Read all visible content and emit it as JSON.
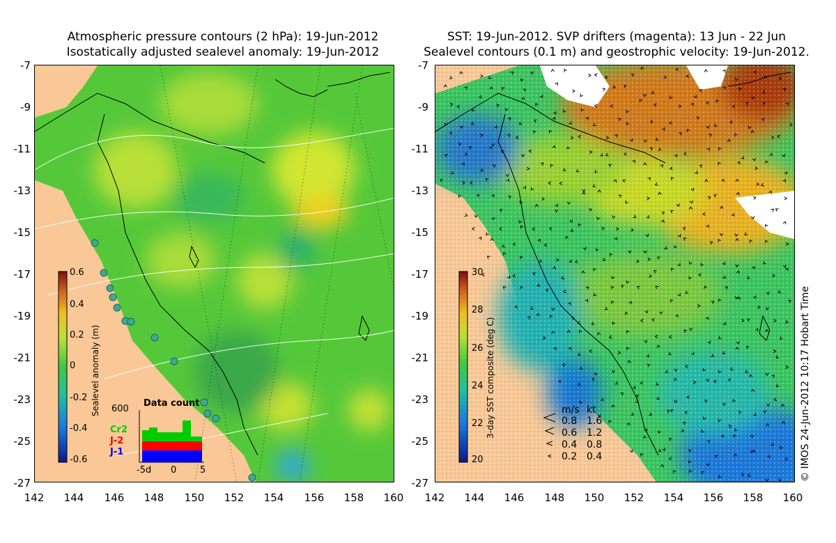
{
  "left_panel": {
    "title_line1": "Atmospheric pressure contours (2 hPa): 19-Jun-2012",
    "title_line2": "Isostatically adjusted sealevel anomaly: 19-Jun-2012",
    "y_ticks": [
      "-7",
      "-9",
      "-11",
      "-13",
      "-15",
      "-17",
      "-19",
      "-21",
      "-23",
      "-25",
      "-27"
    ],
    "x_ticks": [
      "142",
      "144",
      "146",
      "148",
      "150",
      "152",
      "154",
      "156",
      "158",
      "160"
    ],
    "colorbar": {
      "label": "Sealevel anomaly (m)",
      "ticks": [
        "0.6",
        "0.4",
        "0.2",
        "0",
        "-0.2",
        "-0.4",
        "-0.6"
      ],
      "range": [
        -0.6,
        0.6
      ]
    },
    "data_count": {
      "title": "Data count",
      "y_max_label": "600",
      "x_ticks": [
        "-5d",
        "0",
        "5"
      ],
      "series_labels": [
        "Cr2",
        "J-2",
        "J-1"
      ],
      "series_colors": [
        "#00cc00",
        "#ff0000",
        "#0000ff"
      ]
    }
  },
  "right_panel": {
    "title_line1": "SST: 19-Jun-2012. SVP drifters (magenta): 13 Jun - 22 Jun",
    "title_line2": "Sealevel contours (0.1 m) and geostrophic velocity: 19-Jun-2012.",
    "y_ticks": [
      "-7",
      "-9",
      "-11",
      "-13",
      "-15",
      "-17",
      "-19",
      "-21",
      "-23",
      "-25",
      "-27"
    ],
    "x_ticks": [
      "142",
      "144",
      "146",
      "148",
      "150",
      "152",
      "154",
      "156",
      "158",
      "160"
    ],
    "colorbar": {
      "label": "3-day SST composite (deg C)",
      "ticks": [
        "30",
        "28",
        "26",
        "24",
        "22",
        "20"
      ],
      "range": [
        20,
        30
      ]
    },
    "velocity_legend": {
      "header_ms": "m/s",
      "header_kt": "kt",
      "rows": [
        {
          "ms": "0.8",
          "kt": "1.6"
        },
        {
          "ms": "0.6",
          "kt": "1.2"
        },
        {
          "ms": "0.4",
          "kt": "0.8"
        },
        {
          "ms": "0.2",
          "kt": "0.4"
        }
      ]
    },
    "copyright": "© IMOS 24-Jun-2012 10:17 Hobart Time"
  },
  "colors": {
    "land": "#f9c896",
    "ocean_left": "#55c83a",
    "ocean_right": "#3cc460",
    "warm": "#d87a1a",
    "cool": "#1a7ad0"
  }
}
